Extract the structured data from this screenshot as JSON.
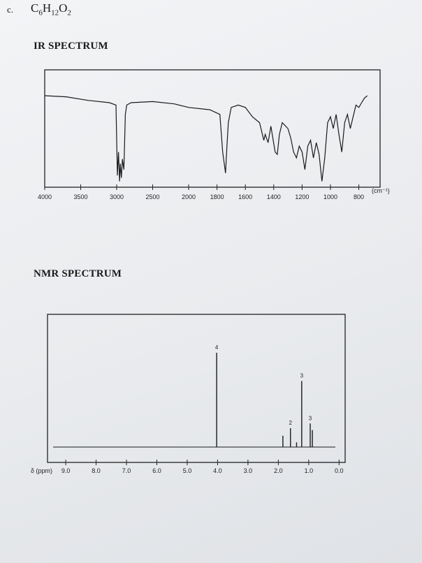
{
  "problem_label": "c.",
  "formula": {
    "c": "C",
    "c_sub": "6",
    "h": "H",
    "h_sub": "12",
    "o": "O",
    "o_sub": "2"
  },
  "ir": {
    "title": "IR SPECTRUM",
    "unit": "(cm⁻¹)",
    "ticks": [
      "4000",
      "3500",
      "3000",
      "2500",
      "2000",
      "1800",
      "1600",
      "1400",
      "1200",
      "1000",
      "800"
    ]
  },
  "nmr": {
    "title": "NMR SPECTRUM",
    "axis_label": "δ (ppm)",
    "ticks": [
      "9.0",
      "8.0",
      "7.0",
      "6.0",
      "5.0",
      "4.0",
      "3.0",
      "2.0",
      "1.0",
      "0.0"
    ]
  },
  "chart_data": [
    {
      "type": "line",
      "x_unit": "cm-1",
      "xlim": [
        4000,
        650
      ],
      "y_unit": "transmittance (relative)",
      "ylim": [
        0,
        1
      ],
      "grid": false,
      "x": [
        4000,
        3700,
        3400,
        3100,
        3010,
        2990,
        2975,
        2960,
        2950,
        2935,
        2920,
        2900,
        2880,
        2860,
        2800,
        2500,
        2200,
        2000,
        1850,
        1780,
        1760,
        1740,
        1730,
        1720,
        1700,
        1650,
        1600,
        1550,
        1500,
        1470,
        1460,
        1440,
        1420,
        1390,
        1375,
        1360,
        1340,
        1300,
        1280,
        1260,
        1240,
        1220,
        1200,
        1180,
        1160,
        1140,
        1120,
        1100,
        1080,
        1060,
        1040,
        1020,
        1000,
        980,
        960,
        940,
        920,
        900,
        880,
        860,
        840,
        820,
        800,
        780,
        760,
        740
      ],
      "y": [
        0.78,
        0.77,
        0.74,
        0.72,
        0.7,
        0.1,
        0.3,
        0.05,
        0.2,
        0.08,
        0.24,
        0.15,
        0.62,
        0.7,
        0.72,
        0.73,
        0.71,
        0.68,
        0.66,
        0.62,
        0.3,
        0.12,
        0.35,
        0.55,
        0.68,
        0.7,
        0.68,
        0.6,
        0.55,
        0.4,
        0.45,
        0.38,
        0.52,
        0.3,
        0.28,
        0.45,
        0.55,
        0.5,
        0.42,
        0.3,
        0.25,
        0.35,
        0.3,
        0.15,
        0.35,
        0.4,
        0.25,
        0.38,
        0.28,
        0.05,
        0.25,
        0.55,
        0.6,
        0.5,
        0.62,
        0.45,
        0.3,
        0.55,
        0.62,
        0.5,
        0.6,
        0.7,
        0.68,
        0.72,
        0.76,
        0.78
      ]
    },
    {
      "type": "line",
      "x_unit": "ppm",
      "xlim": [
        9.6,
        -0.2
      ],
      "grid": false,
      "peaks": [
        {
          "ppm": 4.03,
          "height": 1.0,
          "label": "4"
        },
        {
          "ppm": 1.85,
          "height": 0.12,
          "label": ""
        },
        {
          "ppm": 1.6,
          "height": 0.2,
          "label": "2"
        },
        {
          "ppm": 1.4,
          "height": 0.05,
          "label": ""
        },
        {
          "ppm": 1.23,
          "height": 0.7,
          "label": "3"
        },
        {
          "ppm": 0.95,
          "height": 0.25,
          "label": "3"
        },
        {
          "ppm": 0.88,
          "height": 0.18,
          "label": ""
        }
      ]
    }
  ]
}
